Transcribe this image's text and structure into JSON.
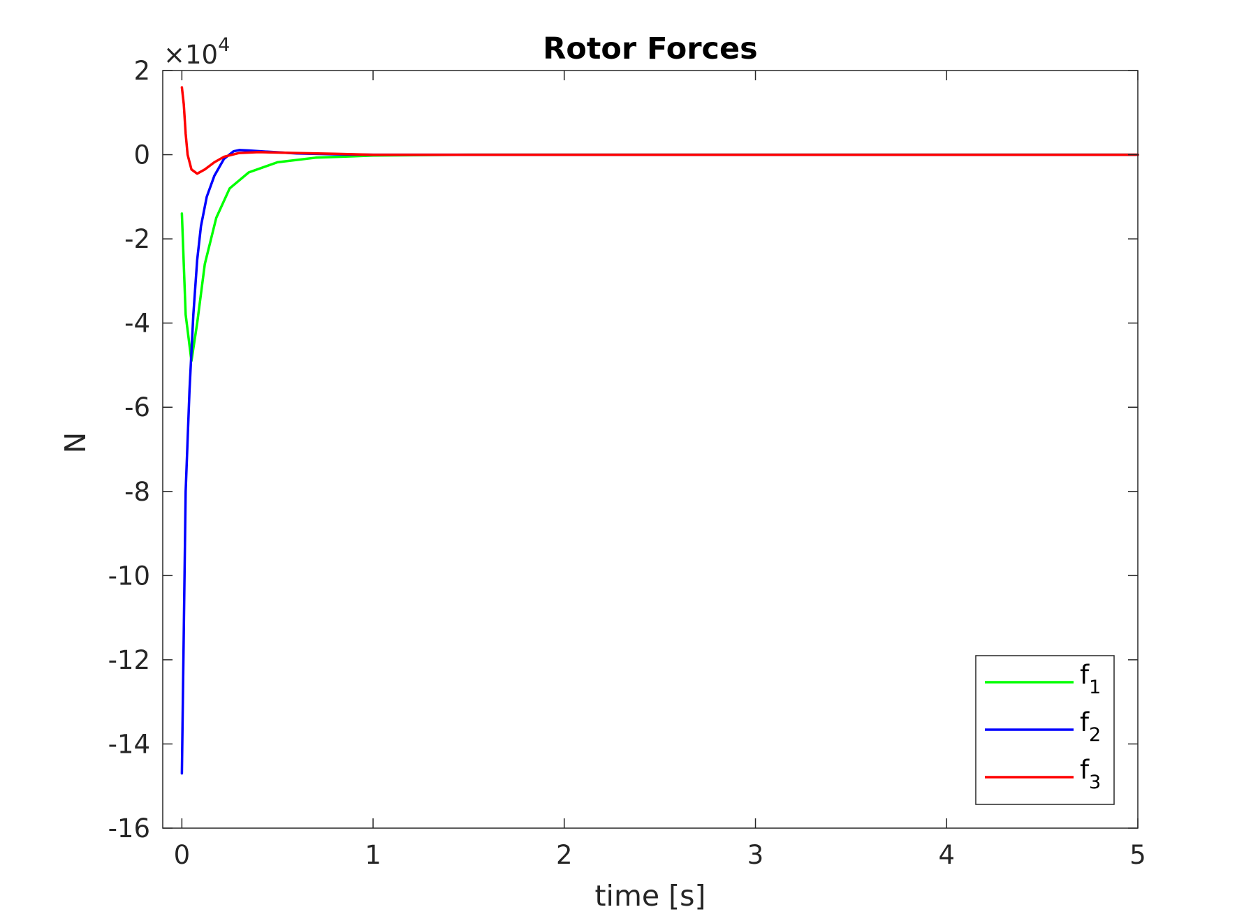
{
  "chart_data": {
    "type": "line",
    "title": "Rotor Forces",
    "xlabel": "time [s]",
    "ylabel": "N",
    "y_multiplier": "×10",
    "y_multiplier_exponent": "4",
    "xlim": [
      -0.1,
      5
    ],
    "ylim": [
      -16,
      2
    ],
    "xticks": [
      0,
      1,
      2,
      3,
      4,
      5
    ],
    "xtick_labels": [
      "0",
      "1",
      "2",
      "3",
      "4",
      "5"
    ],
    "yticks": [
      2,
      0,
      -2,
      -4,
      -6,
      -8,
      -10,
      -12,
      -14,
      -16
    ],
    "ytick_labels": [
      "2",
      "0",
      "-2",
      "-4",
      "-6",
      "-8",
      "-10",
      "-12",
      "-14",
      "-16"
    ],
    "grid": false,
    "legend_location": "bottom-right",
    "series": [
      {
        "name": "f1",
        "label_main": "f",
        "label_sub": "1",
        "color": "#00ff00",
        "x": [
          0,
          0.02,
          0.05,
          0.08,
          0.12,
          0.18,
          0.25,
          0.35,
          0.5,
          0.7,
          1.0,
          1.5,
          2,
          3,
          4,
          5
        ],
        "y": [
          -1.4,
          -3.8,
          -4.9,
          -4.0,
          -2.6,
          -1.5,
          -0.8,
          -0.42,
          -0.18,
          -0.07,
          -0.02,
          0,
          0,
          0,
          0,
          0
        ]
      },
      {
        "name": "f2",
        "label_main": "f",
        "label_sub": "2",
        "color": "#0000ff",
        "x": [
          0,
          0.02,
          0.04,
          0.06,
          0.08,
          0.1,
          0.13,
          0.17,
          0.22,
          0.27,
          0.3,
          0.35,
          0.45,
          0.6,
          0.8,
          1.0,
          1.5,
          2,
          3,
          4,
          5
        ],
        "y": [
          -14.7,
          -8.0,
          -5.6,
          -3.8,
          -2.5,
          -1.7,
          -1.0,
          -0.5,
          -0.1,
          0.08,
          0.11,
          0.1,
          0.07,
          0.03,
          0.01,
          0,
          0,
          0,
          0,
          0,
          0
        ]
      },
      {
        "name": "f3",
        "label_main": "f",
        "label_sub": "3",
        "color": "#ff0000",
        "x": [
          0,
          0.01,
          0.02,
          0.03,
          0.05,
          0.08,
          0.12,
          0.17,
          0.22,
          0.3,
          0.4,
          0.6,
          0.8,
          1.0,
          1.5,
          2,
          3,
          4,
          5
        ],
        "y": [
          1.6,
          1.2,
          0.5,
          0.0,
          -0.35,
          -0.45,
          -0.35,
          -0.18,
          -0.05,
          0.04,
          0.06,
          0.04,
          0.02,
          0,
          0,
          0,
          0,
          0,
          0
        ]
      }
    ]
  }
}
